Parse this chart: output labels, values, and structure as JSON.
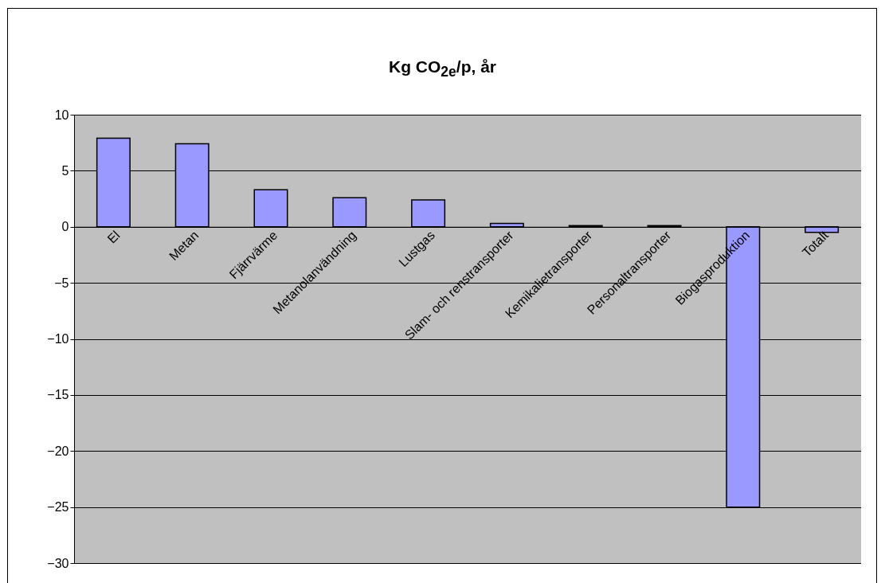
{
  "chart_data": {
    "type": "bar",
    "title": "Kg CO$_{2e}$/p, år",
    "categories": [
      "El",
      "Metan",
      "Fjärrvärme",
      "Metanolanvändning",
      "Lustgas",
      "Slam- och renstransporter",
      "Kemikalietransporter",
      "Personaltransporter",
      "Biogasproduktion",
      "Totalt"
    ],
    "values": [
      7.9,
      7.4,
      3.3,
      2.6,
      2.4,
      0.3,
      0.1,
      0.1,
      -25,
      -0.5
    ],
    "color": "#9999ff",
    "ylim": [
      -30,
      10
    ],
    "yticks": [
      -30,
      -25,
      -20,
      -15,
      -10,
      -5,
      0,
      5,
      10
    ],
    "grid": "y"
  }
}
